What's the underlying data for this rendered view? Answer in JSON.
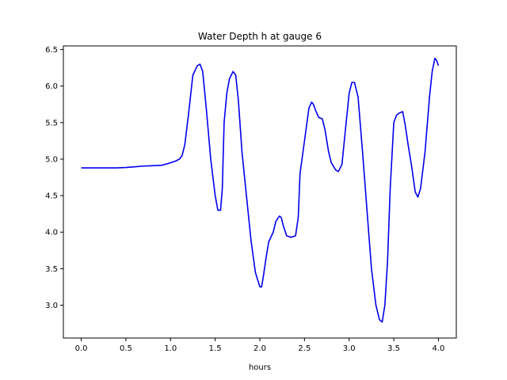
{
  "chart_data": {
    "type": "line",
    "title": "Water Depth h at gauge 6",
    "xlabel": "hours",
    "ylabel": "",
    "xlim": [
      -0.2,
      4.2
    ],
    "ylim": [
      2.55,
      6.55
    ],
    "xticks": [
      0.0,
      0.5,
      1.0,
      1.5,
      2.0,
      2.5,
      3.0,
      3.5,
      4.0
    ],
    "xtick_labels": [
      "0.0",
      "0.5",
      "1.0",
      "1.5",
      "2.0",
      "2.5",
      "3.0",
      "3.5",
      "4.0"
    ],
    "yticks": [
      3.0,
      3.5,
      4.0,
      4.5,
      5.0,
      5.5,
      6.0,
      6.5
    ],
    "ytick_labels": [
      "3.0",
      "3.5",
      "4.0",
      "4.5",
      "5.0",
      "5.5",
      "6.0",
      "6.5"
    ],
    "grid": false,
    "series": [
      {
        "name": "",
        "color": "#0000ee",
        "x": [
          0.0,
          0.2,
          0.4,
          0.5,
          0.6,
          0.7,
          0.8,
          0.9,
          1.0,
          1.05,
          1.1,
          1.13,
          1.16,
          1.2,
          1.25,
          1.3,
          1.33,
          1.36,
          1.4,
          1.45,
          1.5,
          1.53,
          1.56,
          1.58,
          1.6,
          1.63,
          1.66,
          1.7,
          1.73,
          1.76,
          1.8,
          1.85,
          1.9,
          1.95,
          2.0,
          2.02,
          2.04,
          2.07,
          2.1,
          2.15,
          2.18,
          2.22,
          2.24,
          2.26,
          2.3,
          2.35,
          2.4,
          2.43,
          2.45,
          2.5,
          2.55,
          2.58,
          2.6,
          2.63,
          2.66,
          2.7,
          2.73,
          2.77,
          2.8,
          2.85,
          2.88,
          2.92,
          2.95,
          3.0,
          3.03,
          3.06,
          3.1,
          3.15,
          3.2,
          3.25,
          3.3,
          3.34,
          3.37,
          3.4,
          3.43,
          3.46,
          3.5,
          3.53,
          3.56,
          3.6,
          3.63,
          3.66,
          3.7,
          3.74,
          3.77,
          3.8,
          3.85,
          3.9,
          3.93,
          3.96,
          3.98,
          4.0
        ],
        "y": [
          4.88,
          4.88,
          4.88,
          4.885,
          4.895,
          4.905,
          4.91,
          4.915,
          4.95,
          4.97,
          5.0,
          5.05,
          5.2,
          5.6,
          6.15,
          6.28,
          6.3,
          6.2,
          5.7,
          5.0,
          4.5,
          4.3,
          4.3,
          4.6,
          5.5,
          5.9,
          6.1,
          6.2,
          6.15,
          5.8,
          5.1,
          4.5,
          3.9,
          3.45,
          3.25,
          3.25,
          3.4,
          3.65,
          3.87,
          4.0,
          4.15,
          4.22,
          4.2,
          4.1,
          3.95,
          3.93,
          3.95,
          4.2,
          4.8,
          5.25,
          5.7,
          5.78,
          5.75,
          5.65,
          5.57,
          5.55,
          5.4,
          5.1,
          4.95,
          4.85,
          4.83,
          4.93,
          5.3,
          5.9,
          6.05,
          6.05,
          5.85,
          5.1,
          4.3,
          3.5,
          3.0,
          2.8,
          2.77,
          3.0,
          3.6,
          4.6,
          5.5,
          5.6,
          5.63,
          5.65,
          5.45,
          5.2,
          4.9,
          4.55,
          4.48,
          4.6,
          5.1,
          5.85,
          6.2,
          6.38,
          6.35,
          6.28
        ]
      }
    ]
  }
}
